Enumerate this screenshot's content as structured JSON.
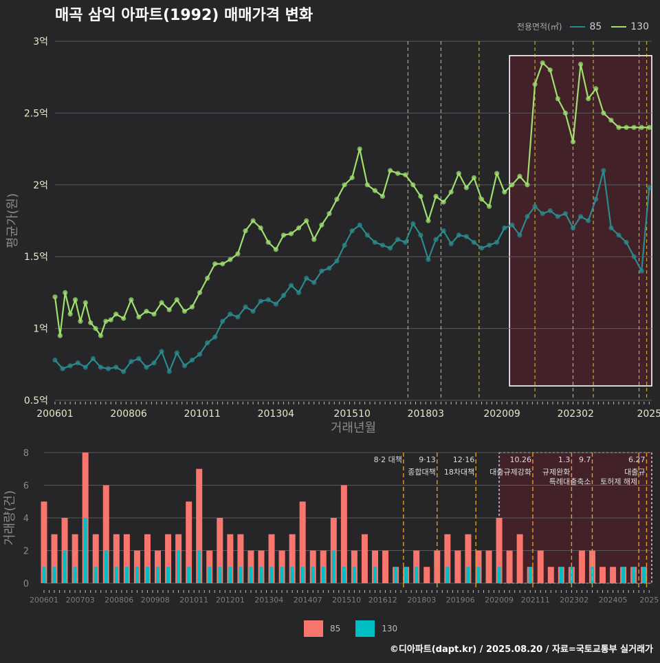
{
  "title": "매곡 삼익 아파트(1992) 매매가격 변화",
  "caption": "©디아파트(dapt.kr) / 2025.08.20 / 자료=국토교통부 실거래가",
  "legend_top": {
    "title": "전용면적(㎡)",
    "items": [
      {
        "label": "85",
        "color": "#2b8a8d"
      },
      {
        "label": "130",
        "color": "#9fe070"
      }
    ]
  },
  "legend_bottom": {
    "items": [
      {
        "label": "85",
        "color": "#f8766d"
      },
      {
        "label": "130",
        "color": "#00bfc4"
      }
    ]
  },
  "chart_data": [
    {
      "type": "line",
      "xlabel": "거래년월",
      "ylabel": "평균가(원)",
      "x_domain": [
        "2006-01",
        "2025-08"
      ],
      "ylim": [
        0.5,
        3.0
      ],
      "y_ticks": [
        "0.5억",
        "1억",
        "1.5억",
        "2억",
        "2.5억",
        "3억"
      ],
      "y_tick_values": [
        0.5,
        1.0,
        1.5,
        2.0,
        2.5,
        3.0
      ],
      "x_ticks": [
        "200601",
        "200806",
        "201011",
        "201304",
        "201510",
        "201803",
        "202009",
        "202302",
        "2025"
      ],
      "x_tick_dates": [
        "2006-01",
        "2008-06",
        "2010-11",
        "2013-04",
        "2015-10",
        "2018-03",
        "2020-09",
        "2023-02",
        "2025-07"
      ],
      "grid": true,
      "legend": "top-right",
      "highlight_region": {
        "from": "2020-12",
        "to": "2025-08",
        "ylim": [
          0.6,
          2.9
        ]
      },
      "policy_lines": [
        "2017-08",
        "2018-09",
        "2019-12",
        "2021-10",
        "2023-01",
        "2023-09",
        "2025-03",
        "2025-06"
      ],
      "series": [
        {
          "name": "85",
          "color": "#2b8a8d",
          "points": [
            [
              "2006-01",
              0.78
            ],
            [
              "2006-04",
              0.72
            ],
            [
              "2006-07",
              0.74
            ],
            [
              "2006-10",
              0.76
            ],
            [
              "2007-01",
              0.73
            ],
            [
              "2007-04",
              0.79
            ],
            [
              "2007-07",
              0.73
            ],
            [
              "2007-10",
              0.72
            ],
            [
              "2008-01",
              0.73
            ],
            [
              "2008-04",
              0.7
            ],
            [
              "2008-07",
              0.77
            ],
            [
              "2008-10",
              0.79
            ],
            [
              "2009-01",
              0.73
            ],
            [
              "2009-04",
              0.76
            ],
            [
              "2009-07",
              0.84
            ],
            [
              "2009-10",
              0.7
            ],
            [
              "2010-01",
              0.83
            ],
            [
              "2010-04",
              0.74
            ],
            [
              "2010-07",
              0.78
            ],
            [
              "2010-10",
              0.82
            ],
            [
              "2011-01",
              0.9
            ],
            [
              "2011-04",
              0.94
            ],
            [
              "2011-07",
              1.05
            ],
            [
              "2011-10",
              1.1
            ],
            [
              "2012-01",
              1.08
            ],
            [
              "2012-04",
              1.15
            ],
            [
              "2012-07",
              1.12
            ],
            [
              "2012-10",
              1.19
            ],
            [
              "2013-01",
              1.2
            ],
            [
              "2013-04",
              1.17
            ],
            [
              "2013-07",
              1.23
            ],
            [
              "2013-10",
              1.3
            ],
            [
              "2014-01",
              1.25
            ],
            [
              "2014-04",
              1.35
            ],
            [
              "2014-07",
              1.32
            ],
            [
              "2014-10",
              1.4
            ],
            [
              "2015-01",
              1.42
            ],
            [
              "2015-04",
              1.47
            ],
            [
              "2015-07",
              1.58
            ],
            [
              "2015-10",
              1.68
            ],
            [
              "2016-01",
              1.72
            ],
            [
              "2016-04",
              1.65
            ],
            [
              "2016-07",
              1.6
            ],
            [
              "2016-10",
              1.58
            ],
            [
              "2017-01",
              1.56
            ],
            [
              "2017-04",
              1.62
            ],
            [
              "2017-07",
              1.6
            ],
            [
              "2017-10",
              1.73
            ],
            [
              "2018-01",
              1.65
            ],
            [
              "2018-04",
              1.48
            ],
            [
              "2018-07",
              1.62
            ],
            [
              "2018-10",
              1.68
            ],
            [
              "2019-01",
              1.59
            ],
            [
              "2019-04",
              1.65
            ],
            [
              "2019-07",
              1.64
            ],
            [
              "2019-10",
              1.6
            ],
            [
              "2020-01",
              1.56
            ],
            [
              "2020-04",
              1.58
            ],
            [
              "2020-07",
              1.6
            ],
            [
              "2020-10",
              1.7
            ],
            [
              "2021-01",
              1.72
            ],
            [
              "2021-04",
              1.65
            ],
            [
              "2021-07",
              1.78
            ],
            [
              "2021-10",
              1.85
            ],
            [
              "2022-01",
              1.8
            ],
            [
              "2022-04",
              1.82
            ],
            [
              "2022-07",
              1.78
            ],
            [
              "2022-10",
              1.8
            ],
            [
              "2023-01",
              1.7
            ],
            [
              "2023-04",
              1.78
            ],
            [
              "2023-07",
              1.75
            ],
            [
              "2023-10",
              1.9
            ],
            [
              "2024-01",
              2.1
            ],
            [
              "2024-04",
              1.7
            ],
            [
              "2024-07",
              1.65
            ],
            [
              "2024-10",
              1.6
            ],
            [
              "2025-01",
              1.5
            ],
            [
              "2025-04",
              1.4
            ],
            [
              "2025-07",
              1.98
            ]
          ]
        },
        {
          "name": "130",
          "color": "#9fe070",
          "points": [
            [
              "2006-01",
              1.22
            ],
            [
              "2006-03",
              0.95
            ],
            [
              "2006-05",
              1.25
            ],
            [
              "2006-07",
              1.1
            ],
            [
              "2006-09",
              1.2
            ],
            [
              "2006-11",
              1.05
            ],
            [
              "2007-01",
              1.18
            ],
            [
              "2007-03",
              1.04
            ],
            [
              "2007-05",
              1.0
            ],
            [
              "2007-07",
              0.95
            ],
            [
              "2007-09",
              1.05
            ],
            [
              "2007-11",
              1.06
            ],
            [
              "2008-01",
              1.1
            ],
            [
              "2008-04",
              1.07
            ],
            [
              "2008-07",
              1.2
            ],
            [
              "2008-10",
              1.08
            ],
            [
              "2009-01",
              1.12
            ],
            [
              "2009-04",
              1.1
            ],
            [
              "2009-07",
              1.18
            ],
            [
              "2009-10",
              1.13
            ],
            [
              "2010-01",
              1.2
            ],
            [
              "2010-04",
              1.12
            ],
            [
              "2010-07",
              1.15
            ],
            [
              "2010-10",
              1.25
            ],
            [
              "2011-01",
              1.35
            ],
            [
              "2011-04",
              1.45
            ],
            [
              "2011-07",
              1.45
            ],
            [
              "2011-10",
              1.48
            ],
            [
              "2012-01",
              1.52
            ],
            [
              "2012-04",
              1.68
            ],
            [
              "2012-07",
              1.75
            ],
            [
              "2012-10",
              1.7
            ],
            [
              "2013-01",
              1.6
            ],
            [
              "2013-04",
              1.55
            ],
            [
              "2013-07",
              1.65
            ],
            [
              "2013-10",
              1.66
            ],
            [
              "2014-01",
              1.7
            ],
            [
              "2014-04",
              1.75
            ],
            [
              "2014-07",
              1.62
            ],
            [
              "2014-10",
              1.72
            ],
            [
              "2015-01",
              1.8
            ],
            [
              "2015-04",
              1.9
            ],
            [
              "2015-07",
              2.0
            ],
            [
              "2015-10",
              2.05
            ],
            [
              "2016-01",
              2.25
            ],
            [
              "2016-04",
              2.0
            ],
            [
              "2016-07",
              1.96
            ],
            [
              "2016-10",
              1.92
            ],
            [
              "2017-01",
              2.1
            ],
            [
              "2017-04",
              2.08
            ],
            [
              "2017-07",
              2.07
            ],
            [
              "2017-10",
              2.0
            ],
            [
              "2018-01",
              1.92
            ],
            [
              "2018-04",
              1.75
            ],
            [
              "2018-07",
              1.92
            ],
            [
              "2018-10",
              1.88
            ],
            [
              "2019-01",
              1.95
            ],
            [
              "2019-04",
              2.08
            ],
            [
              "2019-07",
              1.98
            ],
            [
              "2019-10",
              2.05
            ],
            [
              "2020-01",
              1.9
            ],
            [
              "2020-04",
              1.85
            ],
            [
              "2020-07",
              2.08
            ],
            [
              "2020-10",
              1.95
            ],
            [
              "2021-01",
              2.0
            ],
            [
              "2021-04",
              2.06
            ],
            [
              "2021-07",
              2.0
            ],
            [
              "2021-10",
              2.7
            ],
            [
              "2022-01",
              2.85
            ],
            [
              "2022-04",
              2.8
            ],
            [
              "2022-07",
              2.6
            ],
            [
              "2022-10",
              2.5
            ],
            [
              "2023-01",
              2.3
            ],
            [
              "2023-04",
              2.84
            ],
            [
              "2023-07",
              2.6
            ],
            [
              "2023-10",
              2.67
            ],
            [
              "2024-01",
              2.5
            ],
            [
              "2024-04",
              2.45
            ],
            [
              "2024-07",
              2.4
            ],
            [
              "2024-10",
              2.4
            ],
            [
              "2025-01",
              2.4
            ],
            [
              "2025-04",
              2.4
            ],
            [
              "2025-07",
              2.4
            ]
          ]
        }
      ]
    },
    {
      "type": "bar",
      "xlabel": "",
      "ylabel": "거래량(건)",
      "x_domain": [
        "2006-01",
        "2025-08"
      ],
      "ylim": [
        0,
        8
      ],
      "y_ticks": [
        "0",
        "2",
        "4",
        "6",
        "8"
      ],
      "y_tick_values": [
        0,
        2,
        4,
        6,
        8
      ],
      "x_ticks": [
        "200601",
        "200703",
        "200806",
        "200908",
        "201011",
        "201201",
        "201304",
        "201407",
        "201510",
        "201612",
        "201803",
        "201906",
        "202009",
        "202111",
        "202302",
        "202405",
        "2025"
      ],
      "x_tick_dates": [
        "2006-01",
        "2007-03",
        "2008-06",
        "2009-08",
        "2010-11",
        "2012-01",
        "2013-04",
        "2014-07",
        "2015-10",
        "2016-12",
        "2018-03",
        "2019-06",
        "2020-09",
        "2021-11",
        "2023-02",
        "2024-05",
        "2025-07"
      ],
      "grid": true,
      "legend": "bottom",
      "highlight_region": {
        "from": "2020-09",
        "to": "2025-08",
        "ylim": [
          0,
          8
        ]
      },
      "annotations": [
        {
          "date": "2017-08",
          "label": "8·2 대책",
          "sub": ""
        },
        {
          "date": "2018-09",
          "label": "9·13",
          "sub": "종합대책"
        },
        {
          "date": "2019-12",
          "label": "12·16",
          "sub": "18차대책"
        },
        {
          "date": "2021-10",
          "label": "10.26",
          "sub": "대출규제강화"
        },
        {
          "date": "2023-01",
          "label": "1.3",
          "sub": "규제완화"
        },
        {
          "date": "2023-09",
          "label": "9.7",
          "sub": "특례대출축소"
        },
        {
          "date": "2025-03",
          "label": "",
          "sub": "토허제 해제"
        },
        {
          "date": "2025-06",
          "label": "6.27",
          "sub": "대출규"
        }
      ],
      "categories": [
        "2006-01",
        "2006-05",
        "2006-09",
        "2007-01",
        "2007-05",
        "2007-09",
        "2008-01",
        "2008-05",
        "2008-09",
        "2009-01",
        "2009-05",
        "2009-09",
        "2010-01",
        "2010-05",
        "2010-09",
        "2011-01",
        "2011-05",
        "2011-09",
        "2012-01",
        "2012-05",
        "2012-09",
        "2013-01",
        "2013-05",
        "2013-09",
        "2014-01",
        "2014-05",
        "2014-09",
        "2015-01",
        "2015-05",
        "2015-09",
        "2016-01",
        "2016-05",
        "2016-09",
        "2017-01",
        "2017-05",
        "2017-09",
        "2018-01",
        "2018-05",
        "2018-09",
        "2019-01",
        "2019-05",
        "2019-09",
        "2020-01",
        "2020-05",
        "2020-09",
        "2021-01",
        "2021-05",
        "2021-09",
        "2022-01",
        "2022-05",
        "2022-09",
        "2023-01",
        "2023-05",
        "2023-09",
        "2024-01",
        "2024-05",
        "2024-09",
        "2025-01",
        "2025-05"
      ],
      "series": [
        {
          "name": "85",
          "color": "#f8766d",
          "values": [
            5,
            3,
            4,
            3,
            8,
            3,
            6,
            3,
            3,
            2,
            3,
            2,
            3,
            3,
            5,
            7,
            2,
            4,
            3,
            3,
            2,
            2,
            3,
            2,
            3,
            5,
            2,
            2,
            4,
            6,
            2,
            3,
            2,
            2,
            1,
            1,
            2,
            1,
            2,
            3,
            2,
            3,
            2,
            2,
            4,
            2,
            3,
            1,
            2,
            1,
            1,
            1,
            2,
            2,
            1,
            1,
            1,
            1,
            1
          ]
        },
        {
          "name": "130",
          "color": "#00bfc4",
          "values": [
            1,
            1,
            2,
            1,
            4,
            1,
            2,
            1,
            1,
            1,
            1,
            1,
            1,
            2,
            1,
            2,
            1,
            1,
            1,
            1,
            1,
            1,
            1,
            1,
            1,
            1,
            1,
            1,
            2,
            1,
            1,
            0,
            1,
            0,
            1,
            1,
            1,
            0,
            0,
            1,
            0,
            1,
            1,
            0,
            1,
            0,
            0,
            1,
            0,
            0,
            1,
            1,
            0,
            1,
            0,
            0,
            1,
            1,
            1
          ]
        }
      ]
    }
  ]
}
